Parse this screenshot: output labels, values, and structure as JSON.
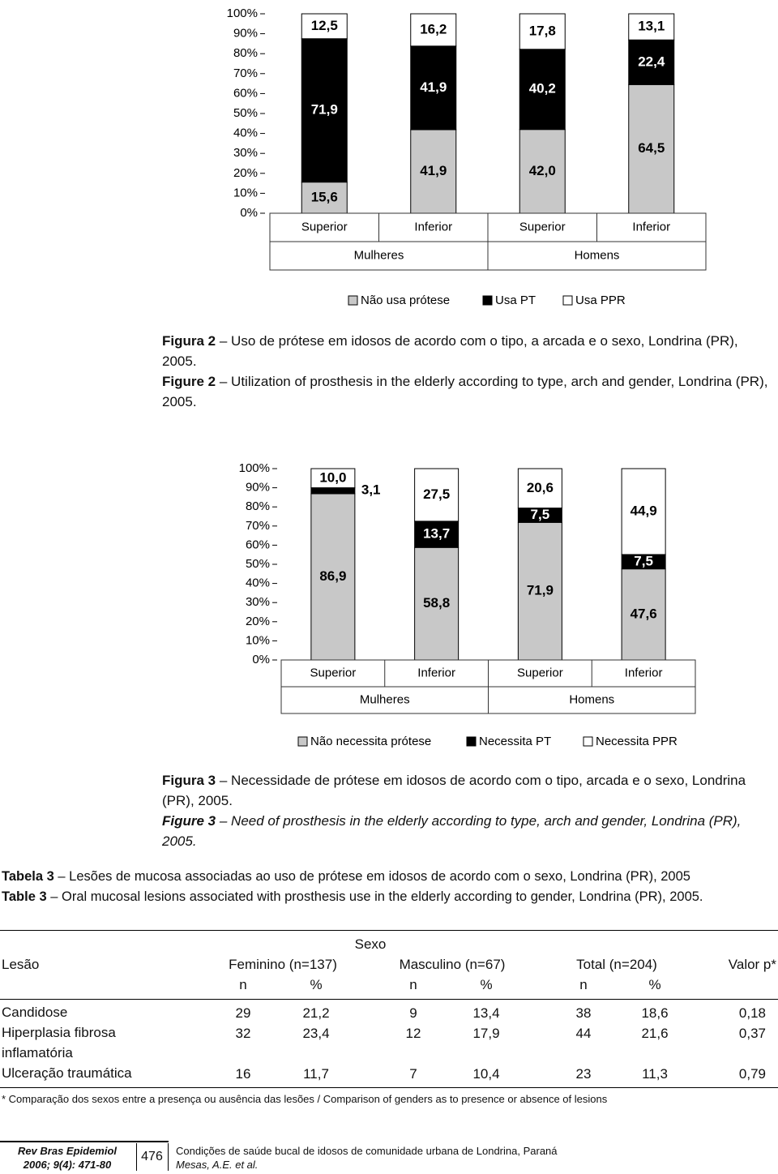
{
  "chart_data": [
    {
      "type": "stacked_bar",
      "categories": [
        "Superior",
        "Inferior",
        "Superior",
        "Inferior"
      ],
      "groups": [
        "Mulheres",
        "Homens"
      ],
      "series": [
        {
          "name": "Não usa prótese",
          "color": "#c8c8c8",
          "values": [
            15.6,
            41.9,
            42.0,
            64.5
          ],
          "value_labels": [
            "15,6",
            "41,9",
            "42,0",
            "64,5"
          ]
        },
        {
          "name": "Usa PT",
          "color": "#000000",
          "values": [
            71.9,
            41.9,
            40.2,
            22.4
          ],
          "value_labels": [
            "71,9",
            "41,9",
            "40,2",
            "22,4"
          ]
        },
        {
          "name": "Usa PPR",
          "color": "#ffffff",
          "values": [
            12.5,
            16.2,
            17.8,
            13.1
          ],
          "value_labels": [
            "12,5",
            "16,2",
            "17,8",
            "13,1"
          ]
        }
      ],
      "ylim": [
        0,
        100
      ],
      "yticks": [
        {
          "value": 0,
          "label": "0%"
        },
        {
          "value": 10,
          "label": "10%"
        },
        {
          "value": 20,
          "label": "20%"
        },
        {
          "value": 30,
          "label": "30%"
        },
        {
          "value": 40,
          "label": "40%"
        },
        {
          "value": 50,
          "label": "50%"
        },
        {
          "value": 60,
          "label": "60%"
        },
        {
          "value": 70,
          "label": "70%"
        },
        {
          "value": 80,
          "label": "80%"
        },
        {
          "value": 90,
          "label": "90%"
        },
        {
          "value": 100,
          "label": "100%"
        }
      ],
      "legend": "bottom"
    },
    {
      "type": "stacked_bar",
      "categories": [
        "Superior",
        "Inferior",
        "Superior",
        "Inferior"
      ],
      "groups": [
        "Mulheres",
        "Homens"
      ],
      "series": [
        {
          "name": "Não necessita prótese",
          "color": "#c8c8c8",
          "values": [
            86.9,
            58.8,
            71.9,
            47.6
          ],
          "value_labels": [
            "86,9",
            "58,8",
            "71,9",
            "47,6"
          ]
        },
        {
          "name": "Necessita PT",
          "color": "#000000",
          "values": [
            3.1,
            13.7,
            7.5,
            7.5
          ],
          "value_labels": [
            "3,1",
            "13,7",
            "7,5",
            "7,5"
          ]
        },
        {
          "name": "Necessita PPR",
          "color": "#ffffff",
          "values": [
            10.0,
            27.5,
            20.6,
            44.9
          ],
          "value_labels": [
            "10,0",
            "27,5",
            "20,6",
            "44,9"
          ]
        }
      ],
      "ylim": [
        0,
        100
      ],
      "yticks": [
        {
          "value": 0,
          "label": "0%"
        },
        {
          "value": 10,
          "label": "10%"
        },
        {
          "value": 20,
          "label": "20%"
        },
        {
          "value": 30,
          "label": "30%"
        },
        {
          "value": 40,
          "label": "40%"
        },
        {
          "value": 50,
          "label": "50%"
        },
        {
          "value": 60,
          "label": "60%"
        },
        {
          "value": 70,
          "label": "70%"
        },
        {
          "value": 80,
          "label": "80%"
        },
        {
          "value": 90,
          "label": "90%"
        },
        {
          "value": 100,
          "label": "100%"
        }
      ],
      "legend": "bottom"
    }
  ],
  "figures": [
    {
      "label_pt": "Figura 2",
      "caption_pt": "– Uso de prótese em idosos de acordo com o tipo, a arcada e o sexo, Londrina (PR), 2005.",
      "label_en": "Figure 2",
      "caption_en": "– Utilization of prosthesis in the elderly according to type, arch and gender, Londrina (PR), 2005."
    },
    {
      "label_pt": "Figura 3",
      "caption_pt": "– Necessidade de prótese em idosos de acordo com o tipo, arcada e o sexo, Londrina (PR), 2005.",
      "label_en": "Figure 3",
      "caption_en": "– Need of prosthesis in the elderly according to type, arch and gender, Londrina (PR), 2005."
    }
  ],
  "table": {
    "label_pt": "Tabela 3",
    "title_pt": "– Lesões de mucosa associadas ao uso de prótese em idosos de acordo com o sexo, Londrina (PR), 2005",
    "label_en": "Table 3",
    "title_en": "– Oral mucosal lesions associated with prosthesis use in the elderly according to gender, Londrina (PR), 2005.",
    "group_header": "Sexo",
    "columns": [
      "Lesão",
      "Feminino (n=137)",
      "Masculino (n=67)",
      "Total (n=204)",
      "Valor p*"
    ],
    "subcolumns": [
      "n",
      "%",
      "n",
      "%",
      "n",
      "%"
    ],
    "rows": [
      [
        "Candidose",
        "29",
        "21,2",
        "9",
        "13,4",
        "38",
        "18,6",
        "0,18"
      ],
      [
        "Hiperplasia fibrosa inflamatória",
        "32",
        "23,4",
        "12",
        "17,9",
        "44",
        "21,6",
        "0,37"
      ],
      [
        "Ulceração traumática",
        "16",
        "11,7",
        "7",
        "10,4",
        "23",
        "11,3",
        "0,79"
      ]
    ],
    "footnote": "* Comparação dos sexos entre a presença ou ausência das lesões / Comparison of genders as to presence or absence of lesions"
  },
  "footer": {
    "journal": "Rev Bras Epidemiol",
    "issue": "2006; 9(4): 471-80",
    "page": "476",
    "title": "Condições de saúde bucal de idosos de comunidade urbana de Londrina, Paraná",
    "authors": "Mesas, A.E. et al."
  }
}
